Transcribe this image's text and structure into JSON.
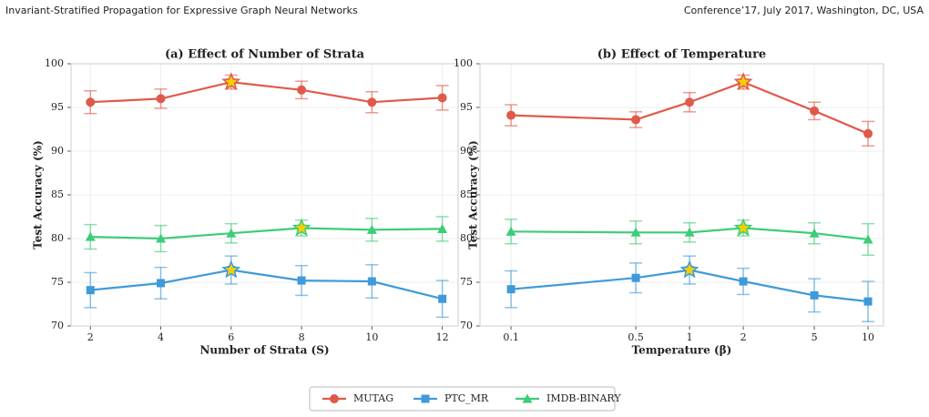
{
  "header": {
    "left": "Invariant-Stratified Propagation for Expressive Graph Neural Networks",
    "right": "Conference’17, July 2017, Washington, DC, USA"
  },
  "chart_data": [
    {
      "type": "line",
      "title": "(a) Effect of Number of Strata",
      "x_label": "Number of Strata (S)",
      "y_label": "Test Accuracy (%)",
      "x": [
        2,
        4,
        6,
        8,
        10,
        12
      ],
      "xlim": [
        1.45,
        12.45
      ],
      "xticks": [
        2,
        4,
        6,
        8,
        10,
        12
      ],
      "xscale": "linear",
      "ylim": [
        70,
        100
      ],
      "yticks": [
        70,
        75,
        80,
        85,
        90,
        95,
        100
      ],
      "grid": true,
      "series": [
        {
          "name": "MUTAG",
          "color": "#e05a4a",
          "marker": "circle",
          "values": [
            95.6,
            96.0,
            97.9,
            97.0,
            95.6,
            96.1
          ],
          "errors": [
            1.3,
            1.1,
            0.8,
            1.0,
            1.2,
            1.4
          ],
          "best": 2
        },
        {
          "name": "PTC_MR",
          "color": "#3f9ad9",
          "marker": "square",
          "values": [
            74.1,
            74.9,
            76.4,
            75.2,
            75.1,
            73.1
          ],
          "errors": [
            2.0,
            1.8,
            1.6,
            1.7,
            1.9,
            2.1
          ],
          "best": 2
        },
        {
          "name": "IMDB-BINARY",
          "color": "#3ecc78",
          "marker": "triangle",
          "values": [
            80.2,
            80.0,
            80.6,
            81.2,
            81.0,
            81.1
          ],
          "errors": [
            1.4,
            1.5,
            1.1,
            0.9,
            1.3,
            1.4
          ],
          "best": 3
        }
      ]
    },
    {
      "type": "line",
      "title": "(b) Effect of Temperature",
      "x_label": "Temperature (β)",
      "y_label": "Test Accuracy (%)",
      "x": [
        0.1,
        0.5,
        1,
        2,
        5,
        10
      ],
      "xlim": [
        0.067,
        12.2
      ],
      "xticks": [
        0.1,
        0.5,
        1,
        2,
        5,
        10
      ],
      "xscale": "log",
      "ylim": [
        70,
        100
      ],
      "yticks": [
        70,
        75,
        80,
        85,
        90,
        95,
        100
      ],
      "grid": true,
      "series": [
        {
          "name": "MUTAG",
          "color": "#e05a4a",
          "marker": "circle",
          "values": [
            94.1,
            93.6,
            95.6,
            97.9,
            94.6,
            92.0
          ],
          "errors": [
            1.2,
            0.9,
            1.1,
            0.8,
            1.0,
            1.4
          ],
          "best": 3
        },
        {
          "name": "PTC_MR",
          "color": "#3f9ad9",
          "marker": "square",
          "values": [
            74.2,
            75.5,
            76.4,
            75.1,
            73.5,
            72.8
          ],
          "errors": [
            2.1,
            1.7,
            1.6,
            1.5,
            1.9,
            2.3
          ],
          "best": 2
        },
        {
          "name": "IMDB-BINARY",
          "color": "#3ecc78",
          "marker": "triangle",
          "values": [
            80.8,
            80.7,
            80.7,
            81.2,
            80.6,
            79.9
          ],
          "errors": [
            1.4,
            1.3,
            1.1,
            0.9,
            1.2,
            1.8
          ],
          "best": 3
        }
      ]
    }
  ],
  "legend": {
    "position": "bottom"
  }
}
